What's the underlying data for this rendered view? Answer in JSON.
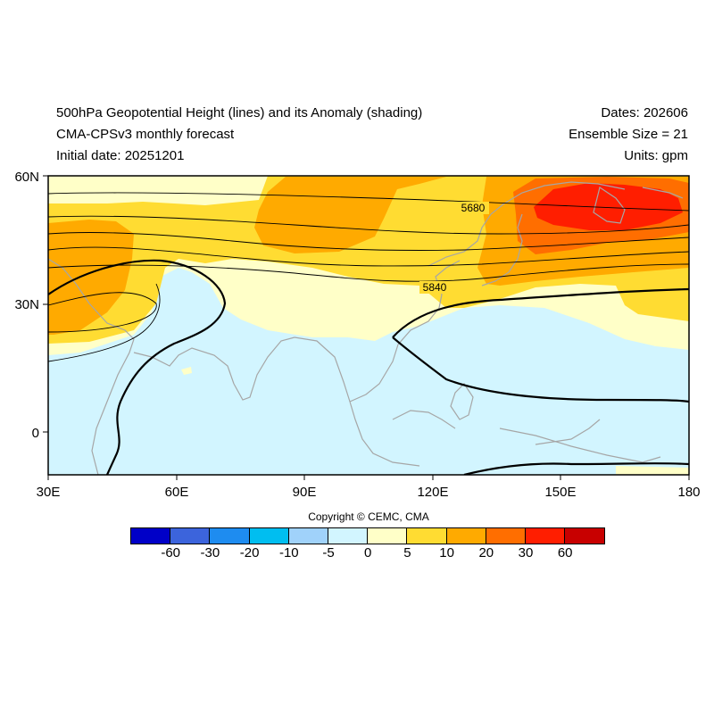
{
  "header": {
    "title_line1": "500hPa Geopotential Height (lines) and its Anomaly (shading)",
    "title_line2": "CMA-CPSv3 monthly forecast",
    "title_line3": "Initial date: 20251201",
    "dates": "Dates: 202606",
    "ensemble": "Ensemble Size = 21",
    "units": "Units: gpm"
  },
  "axes": {
    "lat_labels": [
      "60N",
      "30N",
      "0"
    ],
    "lon_labels": [
      "30E",
      "60E",
      "90E",
      "120E",
      "150E",
      "180"
    ],
    "lon_range": [
      30,
      180
    ],
    "lat_range": [
      -10,
      60
    ]
  },
  "contour_labels": [
    "5680",
    "5840"
  ],
  "copyright": "Copyright © CEMC, CMA",
  "colorbar": {
    "labels": [
      "-60",
      "-30",
      "-20",
      "-10",
      "-5",
      "0",
      "5",
      "10",
      "20",
      "30",
      "60"
    ],
    "colors": [
      "#0000c8",
      "#3c64dc",
      "#1e8cf0",
      "#00bef0",
      "#a0d2fa",
      "#d2f5ff",
      "#ffffc8",
      "#ffdc32",
      "#ffaa00",
      "#ff6e00",
      "#ff1e00",
      "#c80000"
    ]
  }
}
